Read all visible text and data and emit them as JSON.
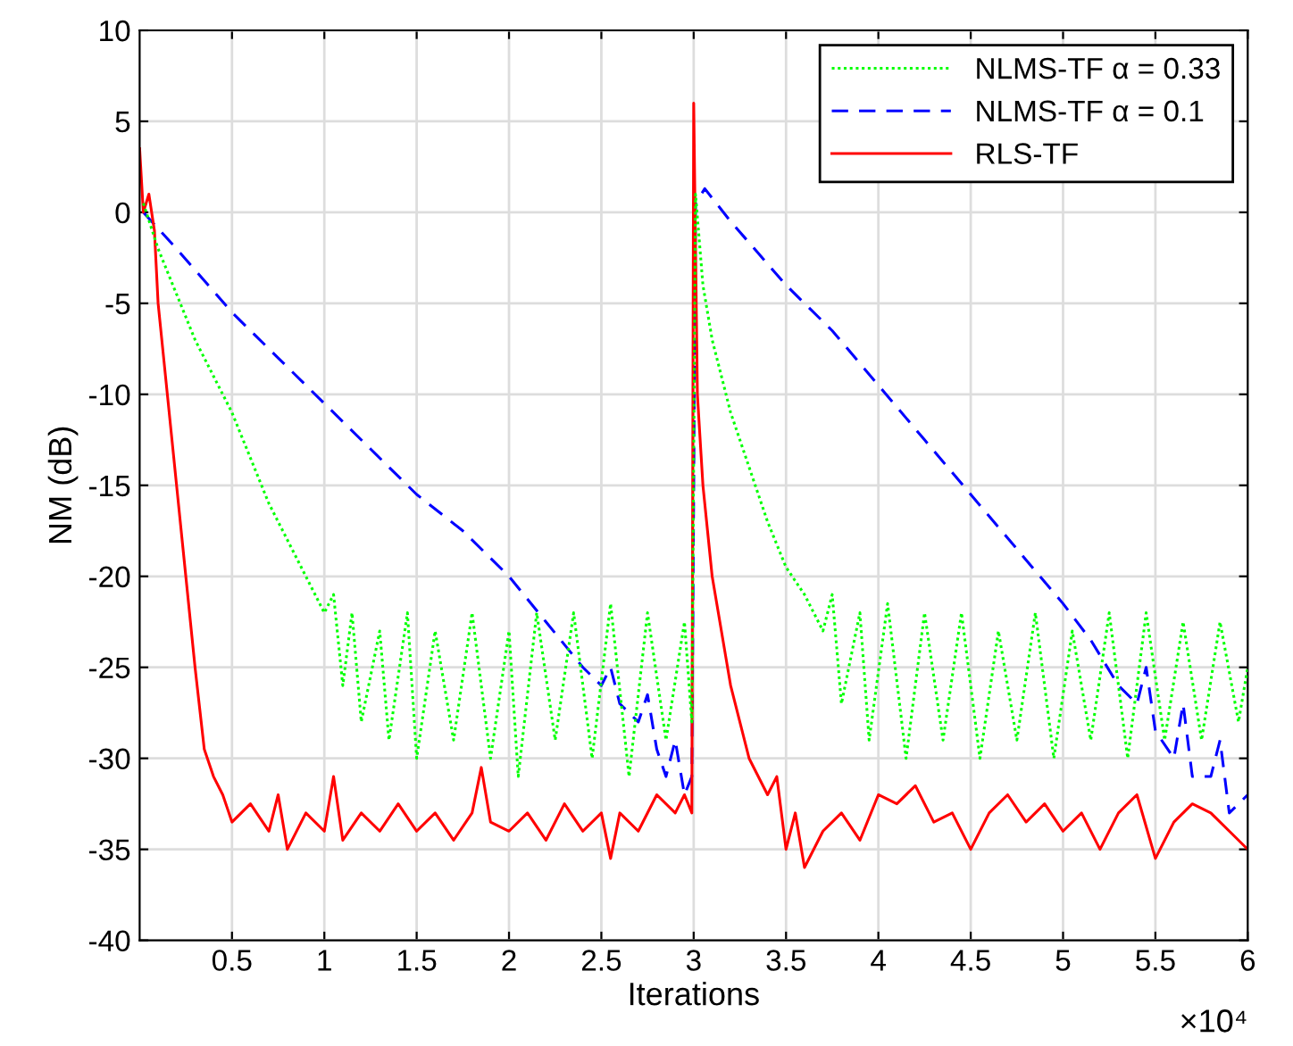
{
  "chart_data": {
    "type": "line",
    "xlabel": "Iterations",
    "ylabel": "NM (dB)",
    "annotations": [
      "×10⁴"
    ],
    "xlim": [
      0,
      6
    ],
    "ylim": [
      -40,
      10
    ],
    "xticks": [
      0.5,
      1,
      1.5,
      2,
      2.5,
      3,
      3.5,
      4,
      4.5,
      5,
      5.5,
      6
    ],
    "yticks": [
      -40,
      -35,
      -30,
      -25,
      -20,
      -15,
      -10,
      -5,
      0,
      5,
      10
    ],
    "grid": true,
    "legend": "top right",
    "marker": "none",
    "series": [
      {
        "name": "NLMS-TF α = 0.33",
        "color": "#00ff00",
        "line_style": "dotted",
        "x": [
          0.02,
          0.1,
          0.2,
          0.3,
          0.4,
          0.5,
          0.6,
          0.7,
          0.8,
          0.9,
          1.0,
          1.05,
          1.1,
          1.15,
          1.2,
          1.3,
          1.35,
          1.45,
          1.5,
          1.6,
          1.7,
          1.8,
          1.9,
          2.0,
          2.05,
          2.15,
          2.25,
          2.35,
          2.45,
          2.55,
          2.65,
          2.75,
          2.85,
          2.95,
          2.99,
          3.01,
          3.05,
          3.1,
          3.2,
          3.3,
          3.4,
          3.5,
          3.6,
          3.7,
          3.75,
          3.8,
          3.9,
          3.95,
          4.05,
          4.15,
          4.25,
          4.35,
          4.45,
          4.55,
          4.65,
          4.75,
          4.85,
          4.95,
          5.05,
          5.15,
          5.25,
          5.35,
          5.45,
          5.55,
          5.65,
          5.75,
          5.85,
          5.95,
          6.0
        ],
        "values": [
          0.5,
          -2,
          -4.5,
          -7,
          -9,
          -11,
          -13.5,
          -16,
          -18,
          -20,
          -22,
          -21,
          -26,
          -22,
          -28,
          -23,
          -29,
          -22,
          -30,
          -23,
          -29,
          -22,
          -30,
          -23,
          -31,
          -22,
          -29,
          -22,
          -30,
          -21.5,
          -31,
          -22,
          -29,
          -22.5,
          -28,
          1,
          -4,
          -7,
          -11,
          -14,
          -17,
          -19.5,
          -21,
          -23,
          -21,
          -27,
          -22,
          -29,
          -21.5,
          -30,
          -22,
          -29,
          -22,
          -30,
          -23,
          -29,
          -22,
          -30,
          -23,
          -29,
          -22,
          -30,
          -22,
          -29,
          -22.5,
          -29,
          -22.5,
          -28,
          -25
        ]
      },
      {
        "name": "NLMS-TF α = 0.1",
        "color": "#0000ff",
        "line_style": "dashed",
        "x": [
          0.02,
          0.2,
          0.5,
          0.75,
          1.0,
          1.25,
          1.5,
          1.75,
          2.0,
          2.2,
          2.4,
          2.5,
          2.55,
          2.6,
          2.7,
          2.75,
          2.8,
          2.85,
          2.9,
          2.95,
          2.99,
          3.01,
          3.06,
          3.2,
          3.5,
          3.75,
          4.0,
          4.25,
          4.5,
          4.75,
          5.0,
          5.15,
          5.3,
          5.4,
          5.45,
          5.5,
          5.6,
          5.65,
          5.7,
          5.8,
          5.85,
          5.9,
          6.0
        ],
        "values": [
          0,
          -2,
          -5.5,
          -8,
          -10.5,
          -13,
          -15.5,
          -17.5,
          -20,
          -22.5,
          -25,
          -26,
          -25,
          -27,
          -28,
          -26.5,
          -29.5,
          -31,
          -29,
          -32,
          -31,
          0.5,
          1.3,
          -0.5,
          -4,
          -6.5,
          -9.5,
          -12.5,
          -15.5,
          -18.5,
          -21.5,
          -23.5,
          -26,
          -27,
          -25,
          -28.5,
          -30,
          -27,
          -31,
          -31,
          -29,
          -33,
          -32
        ]
      },
      {
        "name": "RLS-TF",
        "color": "#ff0000",
        "line_style": "solid",
        "x": [
          0.0,
          0.02,
          0.05,
          0.08,
          0.1,
          0.15,
          0.2,
          0.25,
          0.3,
          0.35,
          0.4,
          0.45,
          0.5,
          0.6,
          0.7,
          0.75,
          0.8,
          0.9,
          1.0,
          1.05,
          1.1,
          1.2,
          1.3,
          1.4,
          1.5,
          1.6,
          1.7,
          1.8,
          1.85,
          1.9,
          2.0,
          2.1,
          2.2,
          2.3,
          2.4,
          2.5,
          2.55,
          2.6,
          2.7,
          2.8,
          2.9,
          2.95,
          2.99,
          3.0,
          3.02,
          3.05,
          3.1,
          3.2,
          3.3,
          3.4,
          3.45,
          3.5,
          3.55,
          3.6,
          3.7,
          3.8,
          3.9,
          4.0,
          4.1,
          4.2,
          4.3,
          4.4,
          4.5,
          4.6,
          4.7,
          4.8,
          4.9,
          5.0,
          5.1,
          5.2,
          5.3,
          5.4,
          5.5,
          5.6,
          5.7,
          5.8,
          5.9,
          6.0
        ],
        "values": [
          3.5,
          0,
          1,
          -1,
          -5,
          -10,
          -15,
          -20,
          -25,
          -29.5,
          -31,
          -32,
          -33.5,
          -32.5,
          -34,
          -32,
          -35,
          -33,
          -34,
          -31,
          -34.5,
          -33,
          -34,
          -32.5,
          -34,
          -33,
          -34.5,
          -33,
          -30.5,
          -33.5,
          -34,
          -33,
          -34.5,
          -32.5,
          -34,
          -33,
          -35.5,
          -33,
          -34,
          -32,
          -33,
          -32,
          -33,
          6,
          -10,
          -15,
          -20,
          -26,
          -30,
          -32,
          -31,
          -35,
          -33,
          -36,
          -34,
          -33,
          -34.5,
          -32,
          -32.5,
          -31.5,
          -33.5,
          -33,
          -35,
          -33,
          -32,
          -33.5,
          -32.5,
          -34,
          -33,
          -35,
          -33,
          -32,
          -35.5,
          -33.5,
          -32.5,
          -33,
          -34,
          -35
        ]
      }
    ]
  }
}
